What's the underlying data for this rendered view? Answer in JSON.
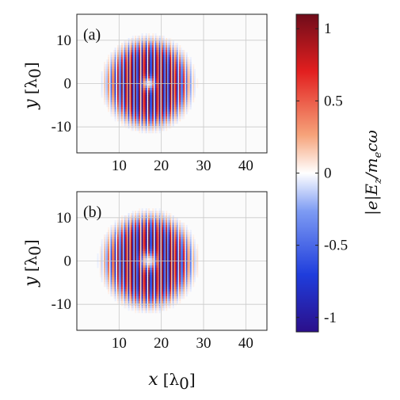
{
  "chart_data": [
    {
      "type": "heatmap",
      "panel_label": "(a)",
      "xlim": [
        0,
        45
      ],
      "ylim": [
        -16,
        16
      ],
      "xticks": [
        10,
        20,
        30,
        40
      ],
      "yticks": [
        10,
        0,
        -10
      ],
      "ylabel": "y",
      "yunit": "[λ0]",
      "field": {
        "description_of_pattern": "carrier",
        "center_x": 17,
        "center_y": 0,
        "radius": 9.5,
        "core_radius": 1.5,
        "wavelength_x": 1.0
      },
      "grid": true
    },
    {
      "type": "heatmap",
      "panel_label": "(b)",
      "xlim": [
        0,
        45
      ],
      "ylim": [
        -16,
        16
      ],
      "xticks": [
        10,
        20,
        30,
        40
      ],
      "yticks": [
        10,
        0,
        -10
      ],
      "xlabel": "x",
      "xunit": "[λ0]",
      "ylabel": "y",
      "yunit": "[λ0]",
      "field": {
        "description_of_pattern": "carrier",
        "center_x": 17,
        "center_y": 0,
        "radius": 10,
        "core_radius": 2.0,
        "wavelength_x": 1.0
      },
      "grid": true
    }
  ],
  "colorbar": {
    "range": [
      -1.1,
      1.1
    ],
    "ticks": [
      "1",
      "0.5",
      "0",
      "-0.5",
      "-1"
    ],
    "tick_values": [
      1,
      0.5,
      0,
      -0.5,
      -1
    ],
    "label": "|e|Ez/mecω",
    "colors": [
      "#2b0f8a",
      "#1f3ddc",
      "#6f8ff2",
      "#ffffff",
      "#f79a6a",
      "#e01e1e",
      "#7a0d1e"
    ]
  },
  "text": {
    "panel_a": "(a)",
    "panel_b": "(b)",
    "y_label_var": "y",
    "y_label_unit": "[λ",
    "y_label_sub": "0",
    "y_label_close": "]",
    "x_label_var": "x",
    "x_label_unit": "[λ",
    "x_label_sub": "0",
    "x_label_close": "]",
    "cb_abs": "|e|E",
    "cb_sub_z": "z",
    "cb_slash": "/m",
    "cb_sub_e": "e",
    "cb_tail": "cω",
    "xtick_10": "10",
    "xtick_20": "20",
    "xtick_30": "30",
    "xtick_40": "40",
    "ytick_10": "10",
    "ytick_0": "0",
    "ytick_m10": "-10",
    "cb_1": "1",
    "cb_05": "0.5",
    "cb_0": "0",
    "cb_m05": "-0.5",
    "cb_m1": "-1"
  }
}
